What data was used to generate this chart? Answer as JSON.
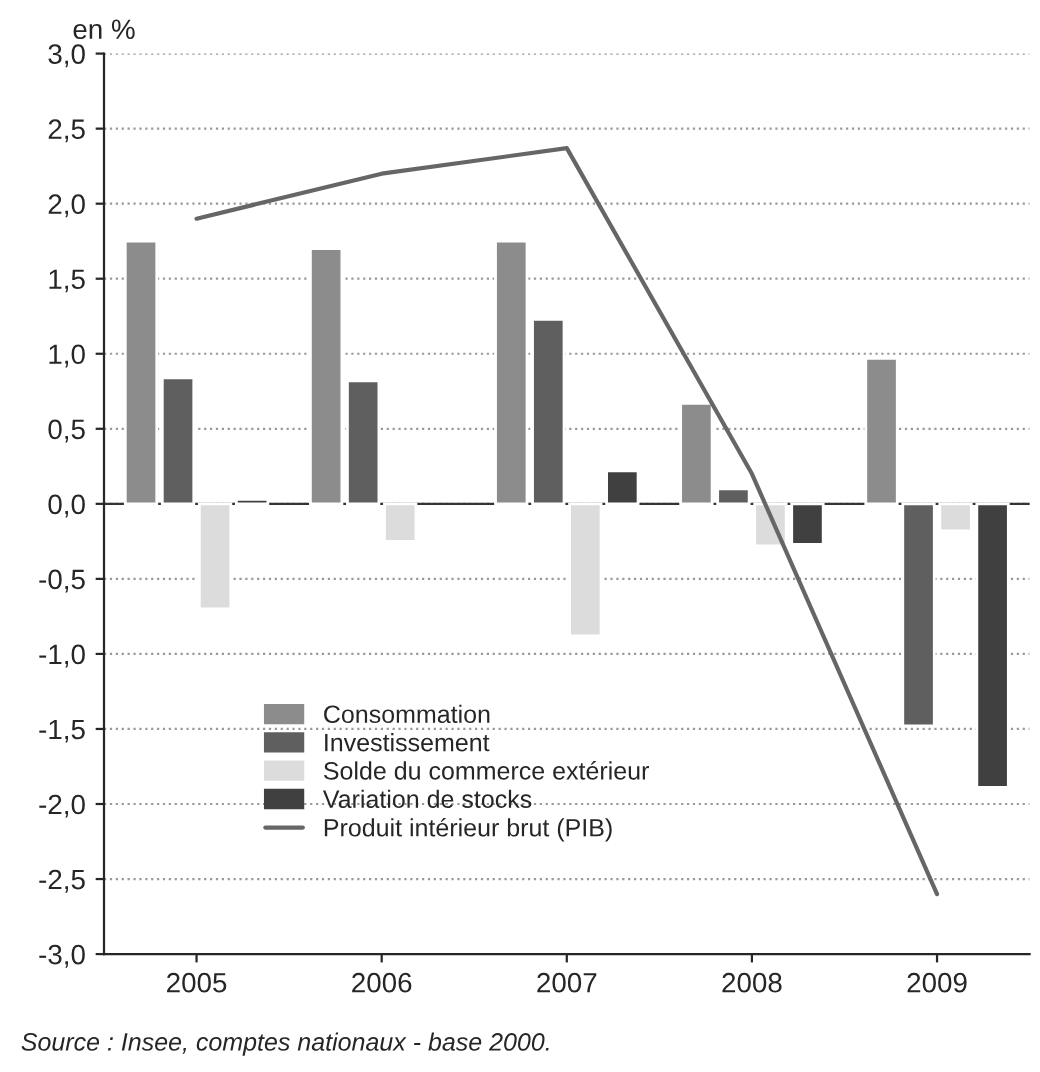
{
  "chart_data": {
    "type": "bar",
    "ylabel": "en %",
    "categories": [
      "2005",
      "2006",
      "2007",
      "2008",
      "2009"
    ],
    "series": [
      {
        "name": "Consommation",
        "color": "#8c8c8c",
        "values": [
          1.75,
          1.7,
          1.75,
          0.67,
          0.97
        ]
      },
      {
        "name": "Investissement",
        "color": "#5f5f5f",
        "values": [
          0.84,
          0.82,
          1.23,
          0.1,
          -1.48
        ]
      },
      {
        "name": "Solde du commerce extérieur",
        "color": "#dcdcdc",
        "values": [
          -0.7,
          -0.25,
          -0.88,
          -0.28,
          -0.18
        ]
      },
      {
        "name": "Variation de stocks",
        "color": "#404040",
        "values": [
          0.03,
          null,
          0.22,
          -0.27,
          -1.89
        ]
      },
      {
        "name": "Produit intérieur brut (PIB)",
        "color": "#666666",
        "type": "line",
        "values": [
          1.9,
          2.2,
          2.37,
          0.2,
          -2.6
        ]
      }
    ],
    "ylim": [
      -3,
      3
    ],
    "yticks": [
      {
        "value": -3,
        "label": "-3,0"
      },
      {
        "value": -2.5,
        "label": "-2,5"
      },
      {
        "value": -2,
        "label": "-2,0"
      },
      {
        "value": -1.5,
        "label": "-1,5"
      },
      {
        "value": -1,
        "label": "-1,0"
      },
      {
        "value": -0.5,
        "label": "-0,5"
      },
      {
        "value": 0,
        "label": "0,0"
      },
      {
        "value": 0.5,
        "label": "0,5"
      },
      {
        "value": 1,
        "label": "1,0"
      },
      {
        "value": 1.5,
        "label": "1,5"
      },
      {
        "value": 2,
        "label": "2,0"
      },
      {
        "value": 2.5,
        "label": "2,5"
      },
      {
        "value": 3,
        "label": "3,0"
      }
    ],
    "grid": "y",
    "legend": "bottom left",
    "line_style": "solid",
    "annotations": [
      "Source : Insee, comptes nationaux - base 2000."
    ]
  }
}
